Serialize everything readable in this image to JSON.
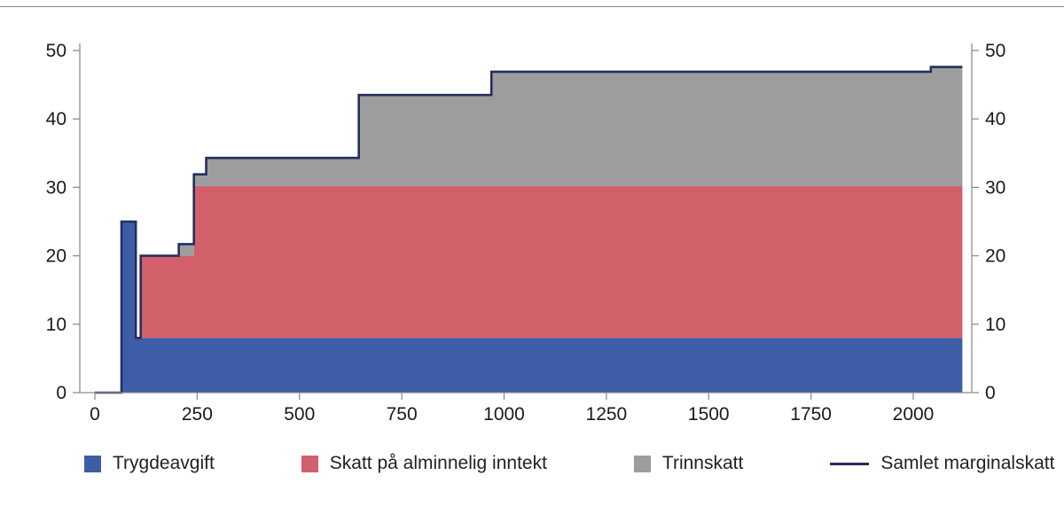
{
  "figure": {
    "title": "",
    "kind": "stacked step area chart of marginal tax rates"
  },
  "chart_data": {
    "type": "area",
    "subtype": "stacked-step",
    "title": "",
    "xlabel": "",
    "ylabel": "",
    "xlim": [
      0,
      2120
    ],
    "ylim": [
      0,
      50
    ],
    "grid": false,
    "legend_position": "bottom",
    "axis_color": "#8e8e8e",
    "tick_label_color": "#1a1a1a",
    "x_ticks": [
      0,
      250,
      500,
      750,
      1000,
      1250,
      1500,
      1750,
      2000
    ],
    "y_ticks_left": [
      0,
      10,
      20,
      30,
      40,
      50
    ],
    "y_ticks_right": [
      0,
      10,
      20,
      30,
      40,
      50
    ],
    "x_breaks": [
      0,
      65,
      100,
      112,
      205,
      242,
      272,
      645,
      969,
      2043,
      2120
    ],
    "series": [
      {
        "name": "Trygdeavgift",
        "color": "#3d5da7",
        "values": [
          0,
          25,
          8,
          8,
          8,
          8,
          8,
          8,
          8,
          8
        ]
      },
      {
        "name": "Skatt på alminnelig inntekt",
        "color": "#d2606b",
        "values": [
          0,
          0,
          0,
          12,
          12,
          22.2,
          22.2,
          22.2,
          22.2,
          22.2
        ]
      },
      {
        "name": "Trinnskatt",
        "color": "#9d9d9d",
        "values": [
          0,
          0,
          0,
          0,
          1.7,
          1.7,
          4.1,
          13.3,
          16.7,
          17.4
        ]
      }
    ],
    "line_series": {
      "name": "Samlet marginalskatt",
      "color": "#252e5f",
      "values": [
        0,
        25,
        8,
        20,
        21.7,
        31.9,
        34.3,
        43.5,
        46.9,
        47.6
      ]
    }
  },
  "legend": {
    "items": [
      {
        "label": "Trygdeavgift",
        "color": "#3d5da7",
        "marker": "box"
      },
      {
        "label": "Skatt på alminnelig inntekt",
        "color": "#d2606b",
        "marker": "box"
      },
      {
        "label": "Trinnskatt",
        "color": "#9d9d9d",
        "marker": "box"
      },
      {
        "label": "Samlet marginalskatt",
        "color": "#252e5f",
        "marker": "line"
      }
    ]
  }
}
